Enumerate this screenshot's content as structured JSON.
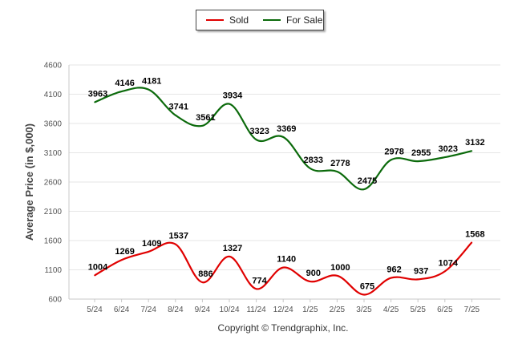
{
  "chart_data": {
    "type": "line",
    "ylabel": "Average Price (in $,000)",
    "ylim": [
      600,
      4600
    ],
    "yticks": [
      600,
      1100,
      1600,
      2100,
      2600,
      3100,
      3600,
      4100,
      4600
    ],
    "categories": [
      "5/24",
      "6/24",
      "7/24",
      "8/24",
      "9/24",
      "10/24",
      "11/24",
      "12/24",
      "1/25",
      "2/25",
      "3/25",
      "4/25",
      "5/25",
      "6/25",
      "7/25"
    ],
    "series": [
      {
        "name": "Sold",
        "color": "#e00000",
        "values": [
          1004,
          1269,
          1409,
          1537,
          886,
          1327,
          774,
          1140,
          900,
          1000,
          675,
          962,
          937,
          1074,
          1568
        ]
      },
      {
        "name": "For Sale",
        "color": "#0b6a0b",
        "values": [
          3963,
          4146,
          4181,
          3741,
          3561,
          3934,
          3323,
          3369,
          2833,
          2778,
          2475,
          2978,
          2955,
          3023,
          3132
        ]
      }
    ],
    "legend": "top-center",
    "grid": true
  },
  "legend": {
    "sold_label": "Sold",
    "for_sale_label": "For Sale"
  },
  "footer": {
    "copyright": "Copyright © Trendgraphix, Inc."
  }
}
